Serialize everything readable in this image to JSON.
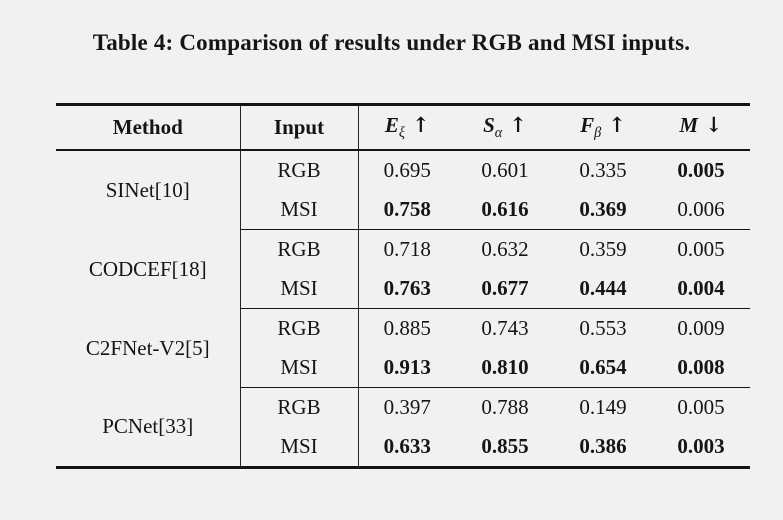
{
  "colors": {
    "background": "#f1f1f1",
    "text": "#151515",
    "rule": "#141414"
  },
  "title": "Table 4: Comparison of results under RGB and MSI inputs.",
  "table": {
    "headers": {
      "method": "Method",
      "input": "Input",
      "metrics": [
        {
          "symbol": "E",
          "sub": "ξ",
          "arrow": "↑"
        },
        {
          "symbol": "S",
          "sub": "α",
          "arrow": "↑"
        },
        {
          "symbol": "F",
          "sub": "β",
          "arrow": "↑"
        },
        {
          "symbol": "M",
          "sub": "",
          "arrow": "↓"
        }
      ]
    },
    "groups": [
      {
        "method": "SINet[10]",
        "rows": [
          {
            "input": "RGB",
            "values": [
              "0.695",
              "0.601",
              "0.335",
              "0.005"
            ],
            "bold": [
              false,
              false,
              false,
              true
            ]
          },
          {
            "input": "MSI",
            "values": [
              "0.758",
              "0.616",
              "0.369",
              "0.006"
            ],
            "bold": [
              true,
              true,
              true,
              false
            ]
          }
        ]
      },
      {
        "method": "CODCEF[18]",
        "rows": [
          {
            "input": "RGB",
            "values": [
              "0.718",
              "0.632",
              "0.359",
              "0.005"
            ],
            "bold": [
              false,
              false,
              false,
              false
            ]
          },
          {
            "input": "MSI",
            "values": [
              "0.763",
              "0.677",
              "0.444",
              "0.004"
            ],
            "bold": [
              true,
              true,
              true,
              true
            ]
          }
        ]
      },
      {
        "method": "C2FNet-V2[5]",
        "rows": [
          {
            "input": "RGB",
            "values": [
              "0.885",
              "0.743",
              "0.553",
              "0.009"
            ],
            "bold": [
              false,
              false,
              false,
              false
            ]
          },
          {
            "input": "MSI",
            "values": [
              "0.913",
              "0.810",
              "0.654",
              "0.008"
            ],
            "bold": [
              true,
              true,
              true,
              true
            ]
          }
        ]
      },
      {
        "method": "PCNet[33]",
        "rows": [
          {
            "input": "RGB",
            "values": [
              "0.397",
              "0.788",
              "0.149",
              "0.005"
            ],
            "bold": [
              false,
              false,
              false,
              false
            ]
          },
          {
            "input": "MSI",
            "values": [
              "0.633",
              "0.855",
              "0.386",
              "0.003"
            ],
            "bold": [
              true,
              true,
              true,
              true
            ]
          }
        ]
      }
    ]
  }
}
